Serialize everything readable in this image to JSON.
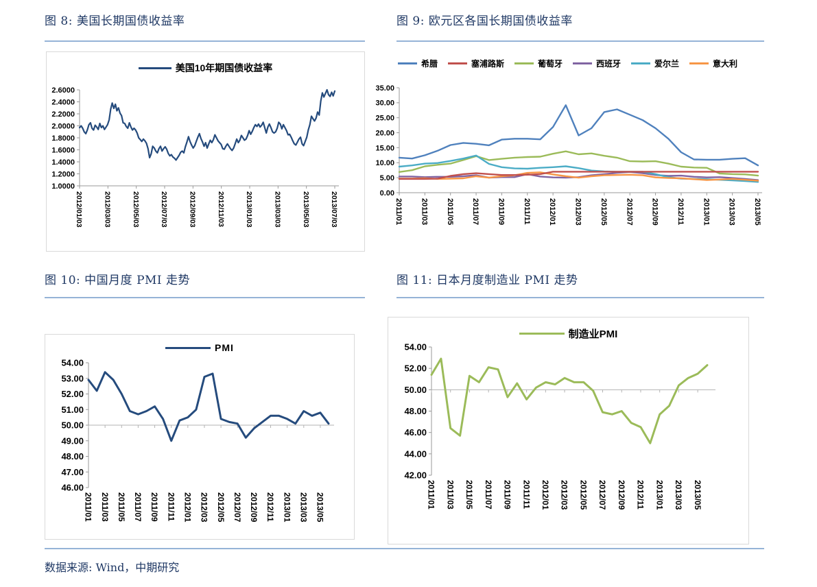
{
  "page": {
    "source_note": "数据来源: Wind，中期研究",
    "title_color": "#1F3864",
    "rule_color": "#95B3D7"
  },
  "chart_data": [
    {
      "type": "line",
      "figure_label": "图 8: 美国长期国债收益率",
      "legend_position": "top",
      "grid": false,
      "ylim": [
        1.0,
        2.6
      ],
      "y_tick_labels": [
        "2.6000",
        "2.4000",
        "2.2000",
        "2.0000",
        "1.8000",
        "1.6000",
        "1.4000",
        "1.2000",
        "1.0000"
      ],
      "x_tick_labels": [
        "2012/01/03",
        "2012/03/03",
        "2012/05/03",
        "2012/07/03",
        "2012/09/03",
        "2012/11/03",
        "2013/01/03",
        "2013/03/03",
        "2013/05/03",
        "2013/07/03"
      ],
      "x_label_mode": "spread",
      "series": [
        {
          "name": "美国10年期国债收益率",
          "color": "#254B7D",
          "values": [
            1.97,
            2.0,
            1.96,
            1.9,
            1.87,
            1.93,
            2.02,
            2.05,
            1.96,
            1.93,
            2.01,
            1.98,
            1.94,
            2.04,
            1.97,
            2.0,
            1.94,
            1.98,
            2.02,
            2.1,
            2.28,
            2.38,
            2.29,
            2.36,
            2.25,
            2.3,
            2.21,
            2.17,
            2.05,
            2.04,
            1.99,
            1.96,
            2.05,
            1.98,
            1.93,
            1.96,
            1.93,
            1.88,
            1.8,
            1.77,
            1.74,
            1.78,
            1.75,
            1.71,
            1.62,
            1.47,
            1.53,
            1.66,
            1.63,
            1.58,
            1.55,
            1.62,
            1.66,
            1.58,
            1.62,
            1.65,
            1.61,
            1.54,
            1.5,
            1.52,
            1.48,
            1.46,
            1.43,
            1.47,
            1.51,
            1.56,
            1.58,
            1.55,
            1.65,
            1.73,
            1.82,
            1.74,
            1.68,
            1.63,
            1.67,
            1.74,
            1.81,
            1.87,
            1.79,
            1.73,
            1.66,
            1.72,
            1.63,
            1.7,
            1.76,
            1.72,
            1.77,
            1.85,
            1.8,
            1.75,
            1.72,
            1.69,
            1.62,
            1.61,
            1.66,
            1.7,
            1.66,
            1.62,
            1.59,
            1.63,
            1.7,
            1.78,
            1.72,
            1.76,
            1.84,
            1.8,
            1.76,
            1.78,
            1.84,
            1.92,
            1.86,
            1.91,
            1.97,
            2.02,
            1.99,
            2.03,
            1.98,
            2.01,
            2.06,
            1.97,
            1.88,
            1.98,
            2.03,
            1.97,
            1.9,
            1.88,
            1.9,
            1.96,
            2.06,
            2.03,
            1.95,
            2.02,
            1.97,
            1.92,
            1.85,
            1.86,
            1.81,
            1.75,
            1.7,
            1.68,
            1.73,
            1.78,
            1.81,
            1.7,
            1.67,
            1.74,
            1.81,
            1.93,
            2.02,
            2.16,
            2.12,
            2.08,
            2.13,
            2.23,
            2.18,
            2.41,
            2.55,
            2.48,
            2.54,
            2.6,
            2.52,
            2.49,
            2.56,
            2.5,
            2.58
          ]
        }
      ]
    },
    {
      "type": "line",
      "figure_label": "图 9: 欧元区各国长期国债收益率",
      "legend_position": "top",
      "grid": false,
      "ylim": [
        0,
        35
      ],
      "y_tick_labels": [
        "35.00",
        "30.00",
        "25.00",
        "20.00",
        "15.00",
        "10.00",
        "5.00",
        "0.00"
      ],
      "x_tick_labels": [
        "2011/01",
        "2011/03",
        "2011/05",
        "2011/07",
        "2011/09",
        "2011/11",
        "2012/01",
        "2012/03",
        "2012/05",
        "2012/07",
        "2012/09",
        "2012/11",
        "2013/01",
        "2013/03",
        "2013/05"
      ],
      "x_label_step": 2,
      "series": [
        {
          "name": "希腊",
          "color": "#4F81BD",
          "values": [
            11.7,
            11.4,
            12.5,
            14.0,
            15.9,
            16.6,
            16.3,
            15.8,
            17.7,
            18.0,
            18.0,
            17.8,
            21.9,
            29.2,
            19.1,
            21.5,
            26.9,
            27.8,
            26.0,
            24.2,
            21.5,
            18.0,
            13.5,
            11.1,
            11.0,
            11.0,
            11.3,
            11.5,
            9.1
          ]
        },
        {
          "name": "塞浦路斯",
          "color": "#C0504D",
          "values": [
            4.6,
            4.6,
            4.6,
            4.7,
            5.6,
            6.2,
            6.5,
            6.2,
            5.9,
            5.9,
            6.0,
            6.2,
            7.0,
            7.0,
            7.0,
            7.0,
            7.0,
            7.0,
            7.0,
            7.0,
            7.0,
            7.0,
            7.0,
            7.0,
            7.0,
            7.0,
            7.0,
            7.0,
            7.0
          ]
        },
        {
          "name": "葡萄牙",
          "color": "#9BBB59",
          "values": [
            6.9,
            7.5,
            8.8,
            9.3,
            9.7,
            10.9,
            12.2,
            10.9,
            11.3,
            11.7,
            11.9,
            12.0,
            13.0,
            13.8,
            12.8,
            13.1,
            12.3,
            11.7,
            10.5,
            10.4,
            10.5,
            9.7,
            8.7,
            8.4,
            8.3,
            6.4,
            6.2,
            6.1,
            5.7
          ]
        },
        {
          "name": "西班牙",
          "color": "#8064A2",
          "values": [
            5.4,
            5.4,
            5.2,
            5.3,
            5.3,
            5.5,
            5.8,
            5.0,
            5.2,
            5.2,
            6.2,
            5.4,
            5.1,
            5.0,
            5.2,
            5.8,
            6.2,
            6.6,
            6.9,
            6.5,
            5.9,
            5.6,
            5.7,
            5.3,
            5.1,
            5.2,
            4.9,
            4.6,
            4.2
          ]
        },
        {
          "name": "爱尔兰",
          "color": "#4BACC6",
          "values": [
            8.7,
            9.1,
            9.7,
            9.9,
            10.6,
            11.4,
            12.4,
            9.6,
            8.5,
            8.1,
            8.0,
            8.3,
            8.5,
            8.8,
            8.2,
            7.4,
            7.1,
            7.0,
            7.0,
            7.0,
            6.2,
            5.2,
            4.7,
            4.6,
            4.5,
            4.3,
            4.1,
            3.9,
            3.6
          ]
        },
        {
          "name": "意大利",
          "color": "#F79646",
          "values": [
            4.7,
            4.7,
            4.8,
            4.6,
            4.7,
            4.8,
            5.5,
            5.0,
            5.5,
            5.8,
            6.6,
            6.8,
            6.1,
            5.5,
            5.0,
            5.5,
            5.8,
            5.9,
            6.0,
            5.8,
            5.1,
            4.9,
            4.8,
            4.5,
            4.2,
            4.4,
            4.6,
            4.3,
            4.0
          ]
        }
      ]
    },
    {
      "type": "line",
      "figure_label": "图 10: 中国月度 PMI 走势",
      "legend_position": "top",
      "grid": false,
      "ylim": [
        46,
        54
      ],
      "axis_cross_value": 50,
      "y_tick_labels": [
        "54.00",
        "53.00",
        "52.00",
        "51.00",
        "50.00",
        "49.00",
        "48.00",
        "47.00",
        "46.00"
      ],
      "x_tick_labels": [
        "2011/01",
        "2011/03",
        "2011/05",
        "2011/07",
        "2011/09",
        "2011/11",
        "2012/01",
        "2012/03",
        "2012/05",
        "2012/07",
        "2012/09",
        "2012/11",
        "2013/01",
        "2013/03",
        "2013/05"
      ],
      "x_label_step": 2,
      "series": [
        {
          "name": "PMI",
          "color": "#254B7D",
          "values": [
            52.9,
            52.2,
            53.4,
            52.9,
            52.0,
            50.9,
            50.7,
            50.9,
            51.2,
            50.4,
            49.0,
            50.3,
            50.5,
            51.0,
            53.1,
            53.3,
            50.4,
            50.2,
            50.1,
            49.2,
            49.8,
            50.2,
            50.6,
            50.6,
            50.4,
            50.1,
            50.9,
            50.6,
            50.8,
            50.1
          ]
        }
      ]
    },
    {
      "type": "line",
      "figure_label": "图 11: 日本月度制造业 PMI 走势",
      "legend_position": "top",
      "grid": false,
      "ylim": [
        42,
        54
      ],
      "axis_cross_value": 50,
      "y_tick_labels": [
        "54.00",
        "52.00",
        "50.00",
        "48.00",
        "46.00",
        "44.00",
        "42.00"
      ],
      "x_tick_labels": [
        "2011/01",
        "2011/03",
        "2011/05",
        "2011/07",
        "2011/09",
        "2011/11",
        "2012/01",
        "2012/03",
        "2012/05",
        "2012/07",
        "2012/09",
        "2012/11",
        "2013/01",
        "2013/03",
        "2013/05"
      ],
      "x_label_step": 2,
      "series": [
        {
          "name": "制造业PMI",
          "color": "#9BBB59",
          "values": [
            51.4,
            52.9,
            46.4,
            45.7,
            51.3,
            50.7,
            52.1,
            51.9,
            49.3,
            50.6,
            49.1,
            50.2,
            50.7,
            50.5,
            51.1,
            50.7,
            50.7,
            49.9,
            47.9,
            47.7,
            48.0,
            46.9,
            46.5,
            45.0,
            47.7,
            48.5,
            50.4,
            51.1,
            51.5,
            52.3
          ]
        }
      ]
    }
  ]
}
